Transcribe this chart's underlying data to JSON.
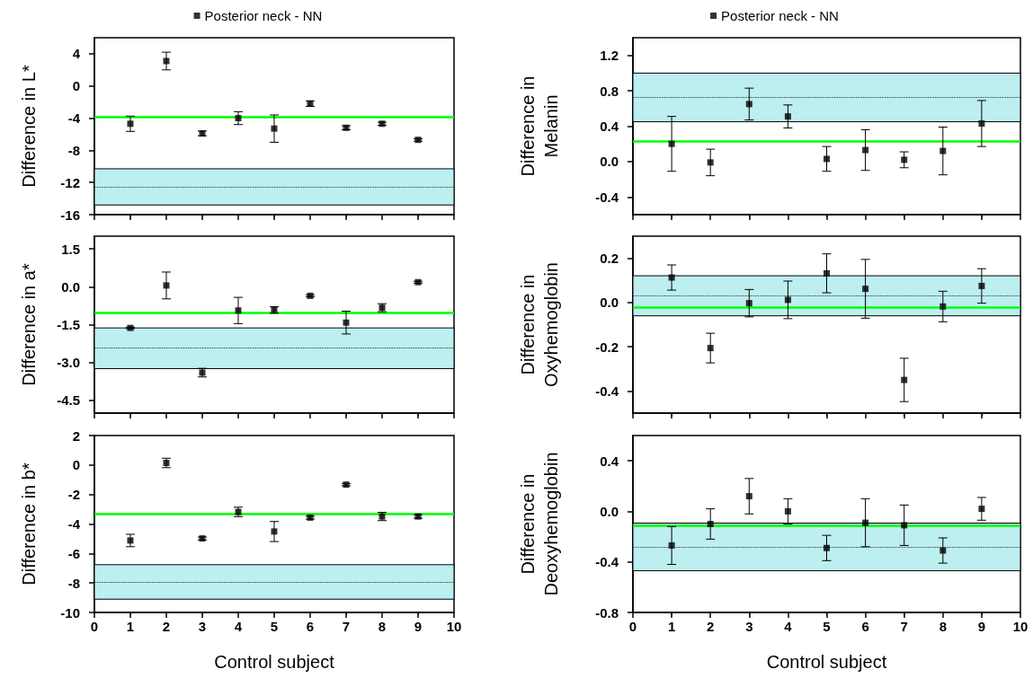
{
  "chart_data": [
    {
      "type": "scatter",
      "ylabel": "Difference in L*",
      "xlim": [
        0,
        10
      ],
      "xticks": [
        0,
        1,
        2,
        3,
        4,
        5,
        6,
        7,
        8,
        9,
        10
      ],
      "ylim": [
        -16,
        6
      ],
      "yticks": [
        -16,
        -12,
        -8,
        -4,
        0,
        4
      ],
      "tick_labels": "y",
      "legend": "top",
      "marker": "square",
      "grid": false,
      "series": [
        {
          "name": "Posterior neck - NN",
          "color": "#000000",
          "x": [
            1,
            2,
            3,
            4,
            5,
            6,
            7,
            8,
            9
          ],
          "values": [
            -4.7,
            3.1,
            -5.9,
            -4.0,
            -5.3,
            -2.2,
            -5.2,
            -4.7,
            -6.7
          ],
          "errors": [
            0.95,
            1.1,
            0.3,
            0.8,
            1.7,
            0.35,
            0.25,
            0.2,
            0.15
          ]
        }
      ],
      "ref_lines": [
        {
          "axis": "y",
          "value": -3.9,
          "label": null,
          "color": "#00ff00",
          "line_style": "solid"
        },
        {
          "axis": "y",
          "value": -12.6,
          "label": null,
          "color": "#000000",
          "line_style": "dotted"
        }
      ],
      "bands": [
        {
          "axis": "y",
          "from": -14.8,
          "to": -10.3,
          "label": null,
          "color": "#bdeef0"
        }
      ]
    },
    {
      "type": "scatter",
      "ylabel": "Difference in a*",
      "xlim": [
        0,
        10
      ],
      "xticks": [
        0,
        1,
        2,
        3,
        4,
        5,
        6,
        7,
        8,
        9,
        10
      ],
      "ylim": [
        -5,
        2
      ],
      "yticks": [
        {
          "value": -4.5,
          "label": "-4.5"
        },
        {
          "value": -3,
          "label": "-3.0"
        },
        {
          "value": -1.5,
          "label": "-1.5"
        },
        {
          "value": 0,
          "label": "0.0"
        },
        {
          "value": 1.5,
          "label": "1.5"
        }
      ],
      "tick_labels": "y",
      "marker": "square",
      "grid": false,
      "series": [
        {
          "color": "#000000",
          "x": [
            1,
            2,
            3,
            4,
            5,
            6,
            7,
            8,
            9
          ],
          "values": [
            -1.63,
            0.05,
            -3.4,
            -0.94,
            -0.92,
            -0.36,
            -1.42,
            -0.83,
            0.18
          ],
          "errors": [
            0.03,
            0.53,
            0.17,
            0.52,
            0.13,
            0.04,
            0.45,
            0.16,
            0.04
          ]
        }
      ],
      "ref_lines": [
        {
          "axis": "y",
          "value": -1.04,
          "label": null,
          "color": "#00ff00",
          "line_style": "solid"
        },
        {
          "axis": "y",
          "value": -2.43,
          "label": null,
          "color": "#000000",
          "line_style": "dotted"
        }
      ],
      "bands": [
        {
          "axis": "y",
          "from": -3.24,
          "to": -1.63,
          "label": null,
          "color": "#bdeef0"
        }
      ]
    },
    {
      "type": "scatter",
      "ylabel": "Difference in b*",
      "xlabel": "Control subject",
      "xlim": [
        0,
        10
      ],
      "xticks": [
        0,
        1,
        2,
        3,
        4,
        5,
        6,
        7,
        8,
        9,
        10
      ],
      "ylim": [
        -10,
        2
      ],
      "yticks": [
        -10,
        -8,
        -6,
        -4,
        -2,
        0,
        2
      ],
      "marker": "square",
      "grid": false,
      "series": [
        {
          "color": "#000000",
          "x": [
            1,
            2,
            3,
            4,
            5,
            6,
            7,
            8,
            9
          ],
          "values": [
            -5.12,
            0.14,
            -4.98,
            -3.18,
            -4.51,
            -3.57,
            -1.33,
            -3.49,
            -3.49
          ],
          "errors": [
            0.42,
            0.32,
            0.1,
            0.32,
            0.68,
            0.1,
            0.08,
            0.28,
            0.12
          ]
        }
      ],
      "ref_lines": [
        {
          "axis": "y",
          "value": -3.29,
          "label": null,
          "color": "#00ff00",
          "line_style": "solid"
        },
        {
          "axis": "y",
          "value": -7.92,
          "label": null,
          "color": "#000000",
          "line_style": "dotted"
        }
      ],
      "bands": [
        {
          "axis": "y",
          "from": -9.1,
          "to": -6.76,
          "label": null,
          "color": "#bdeef0"
        }
      ]
    },
    {
      "type": "scatter",
      "ylabel": "Difference in Melanin",
      "xlim": [
        0,
        10
      ],
      "xticks": [
        0,
        1,
        2,
        3,
        4,
        5,
        6,
        7,
        8,
        9,
        10
      ],
      "ylim": [
        -0.6,
        1.4
      ],
      "yticks": [
        {
          "value": -0.4,
          "label": "-0.4"
        },
        {
          "value": 0,
          "label": "0.0"
        },
        {
          "value": 0.4,
          "label": "0.4"
        },
        {
          "value": 0.8,
          "label": "0.8"
        },
        {
          "value": 1.2,
          "label": "1.2"
        }
      ],
      "tick_labels": "y",
      "legend": "top",
      "marker": "square",
      "grid": false,
      "series": [
        {
          "name": "Posterior neck - NN",
          "color": "#000000",
          "x": [
            1,
            2,
            3,
            4,
            5,
            6,
            7,
            8,
            9
          ],
          "values": [
            0.2,
            -0.01,
            0.65,
            0.51,
            0.03,
            0.13,
            0.02,
            0.12,
            0.43
          ],
          "errors": [
            0.31,
            0.15,
            0.18,
            0.13,
            0.14,
            0.23,
            0.09,
            0.27,
            0.26
          ]
        }
      ],
      "ref_lines": [
        {
          "axis": "y",
          "value": 0.23,
          "label": null,
          "color": "#00ff00",
          "line_style": "solid"
        },
        {
          "axis": "y",
          "value": 0.73,
          "label": null,
          "color": "#000000",
          "line_style": "dotted"
        }
      ],
      "bands": [
        {
          "axis": "y",
          "from": 0.45,
          "to": 1.0,
          "label": null,
          "color": "#bdeef0"
        }
      ]
    },
    {
      "type": "scatter",
      "ylabel": "Difference in Oxyhemoglobin",
      "xlim": [
        0,
        10
      ],
      "xticks": [
        0,
        1,
        2,
        3,
        4,
        5,
        6,
        7,
        8,
        9,
        10
      ],
      "ylim": [
        -0.5,
        0.3
      ],
      "yticks": [
        {
          "value": -0.4,
          "label": "-0.4"
        },
        {
          "value": -0.2,
          "label": "-0.2"
        },
        {
          "value": 0,
          "label": "0.0"
        },
        {
          "value": 0.2,
          "label": "0.2"
        }
      ],
      "tick_labels": "y",
      "marker": "square",
      "grid": false,
      "series": [
        {
          "color": "#000000",
          "x": [
            1,
            2,
            3,
            4,
            5,
            6,
            7,
            8,
            9
          ],
          "values": [
            0.113,
            -0.206,
            -0.003,
            0.012,
            0.132,
            0.062,
            -0.35,
            -0.018,
            0.075
          ],
          "errors": [
            0.057,
            0.067,
            0.062,
            0.085,
            0.088,
            0.133,
            0.098,
            0.069,
            0.078
          ]
        }
      ],
      "ref_lines": [
        {
          "axis": "y",
          "value": -0.022,
          "label": null,
          "color": "#00ff00",
          "line_style": "solid"
        },
        {
          "axis": "y",
          "value": 0.031,
          "label": null,
          "color": "#000000",
          "line_style": "dotted"
        }
      ],
      "bands": [
        {
          "axis": "y",
          "from": -0.06,
          "to": 0.121,
          "label": null,
          "color": "#bdeef0"
        }
      ]
    },
    {
      "type": "scatter",
      "ylabel": "Difference in Deoxyhemoglobin",
      "xlabel": "Control subject",
      "xlim": [
        0,
        10
      ],
      "xticks": [
        0,
        1,
        2,
        3,
        4,
        5,
        6,
        7,
        8,
        9,
        10
      ],
      "ylim": [
        -0.8,
        0.6
      ],
      "yticks": [
        {
          "value": -0.8,
          "label": "-0.8"
        },
        {
          "value": -0.4,
          "label": "-0.4"
        },
        {
          "value": 0,
          "label": "0.0"
        },
        {
          "value": 0.4,
          "label": "0.4"
        }
      ],
      "marker": "square",
      "grid": false,
      "series": [
        {
          "color": "#000000",
          "x": [
            1,
            2,
            3,
            4,
            5,
            6,
            7,
            8,
            9
          ],
          "values": [
            -0.27,
            -0.1,
            0.12,
            0.0,
            -0.29,
            -0.09,
            -0.11,
            -0.31,
            0.02
          ],
          "errors": [
            0.15,
            0.12,
            0.14,
            0.1,
            0.1,
            0.19,
            0.16,
            0.1,
            0.09
          ]
        }
      ],
      "ref_lines": [
        {
          "axis": "y",
          "value": -0.11,
          "label": null,
          "color": "#00ff00",
          "line_style": "solid"
        },
        {
          "axis": "y",
          "value": -0.28,
          "label": null,
          "color": "#000000",
          "line_style": "dotted"
        }
      ],
      "bands": [
        {
          "axis": "y",
          "from": -0.47,
          "to": -0.093,
          "label": null,
          "color": "#bdeef0"
        }
      ]
    }
  ]
}
